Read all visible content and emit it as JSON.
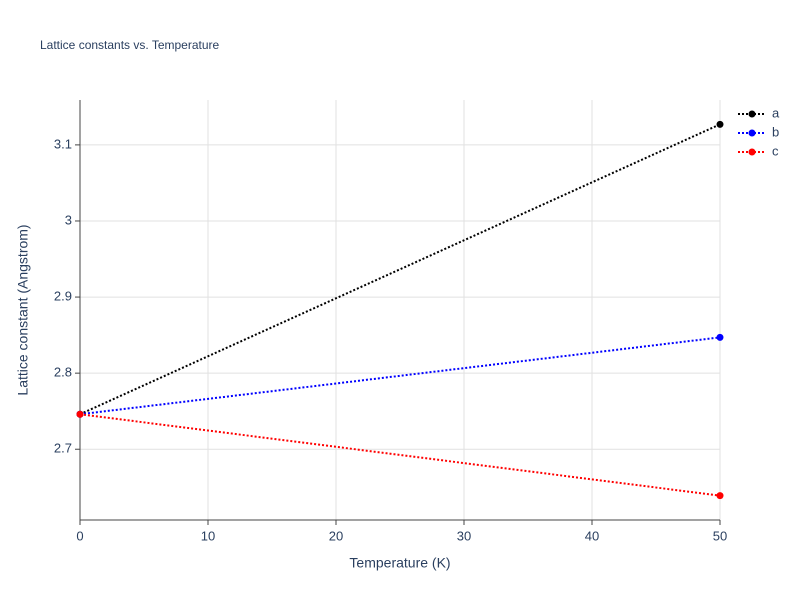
{
  "chart_data": {
    "type": "line",
    "title": "Lattice constants vs. Temperature",
    "x_label": "Temperature (K)",
    "y_label": "Lattice constant (Angstrom)",
    "x": [
      0,
      50
    ],
    "series": [
      {
        "name": "a",
        "color": "#000000",
        "values": [
          2.746,
          3.127
        ]
      },
      {
        "name": "b",
        "color": "#0000ff",
        "values": [
          2.746,
          2.847
        ]
      },
      {
        "name": "c",
        "color": "#ff0000",
        "values": [
          2.746,
          2.639
        ]
      }
    ],
    "xlim": [
      0,
      50
    ],
    "xticks": [
      0,
      10,
      20,
      30,
      40,
      50
    ],
    "ylim": [
      2.607,
      3.159
    ],
    "yticks": [
      2.7,
      2.8,
      2.9,
      3,
      3.1
    ],
    "grid": true,
    "legend": "top-right"
  }
}
